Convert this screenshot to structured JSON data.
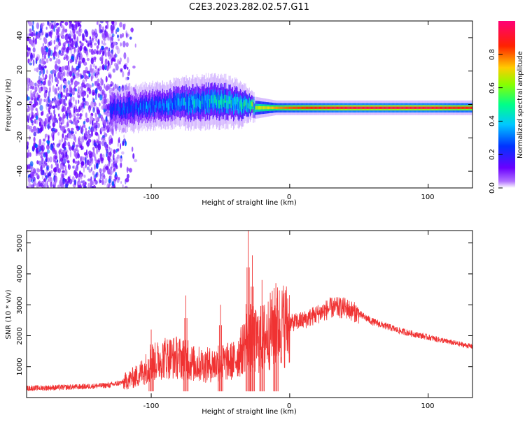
{
  "title": "C2E3.2023.282.02.57.G11",
  "top_panel": {
    "xlabel": "Height of straight line (km)",
    "ylabel": "Frequency (Hz)",
    "x_ticks": [
      "-100",
      "0",
      "100"
    ],
    "y_ticks": [
      "-40",
      "-20",
      "0",
      "20",
      "40"
    ],
    "colorbar": {
      "label": "Normalized spectral amplitude",
      "ticks": [
        "0.0",
        "0.2",
        "0.4",
        "0.6",
        "0.8"
      ]
    }
  },
  "bottom_panel": {
    "xlabel": "Height of straight line (km)",
    "ylabel": "SNR (10 * v/v)",
    "x_ticks": [
      "-100",
      "0",
      "100"
    ],
    "y_ticks": [
      "1000",
      "2000",
      "3000",
      "4000",
      "5000"
    ]
  },
  "chart_data": [
    {
      "type": "heatmap",
      "title": "C2E3.2023.282.02.57.G11",
      "xlabel": "Height of straight line (km)",
      "ylabel": "Frequency (Hz)",
      "xlim": [
        -190,
        132
      ],
      "ylim": [
        -50,
        50
      ],
      "x_ticks": [
        -100,
        0,
        100
      ],
      "y_ticks": [
        -40,
        -20,
        0,
        20,
        40
      ],
      "colorbar": {
        "label": "Normalized spectral amplitude",
        "range": [
          0,
          1
        ],
        "ticks": [
          0.0,
          0.2,
          0.4,
          0.6,
          0.8
        ],
        "colormap": [
          "#ffffff",
          "#6a00ff",
          "#0033ff",
          "#00c8ff",
          "#00ff66",
          "#aaff00",
          "#ffcc00",
          "#ff2200",
          "#ff0077"
        ]
      },
      "signal_track": {
        "x": [
          -130,
          -110,
          -90,
          -70,
          -50,
          -35,
          -25,
          -10,
          0,
          20,
          40,
          60,
          80,
          100,
          120,
          132
        ],
        "center_freq": [
          -3,
          -2,
          0,
          1,
          2,
          0,
          -2,
          -2,
          -2,
          -2,
          -2,
          -2,
          -2,
          -2,
          -2,
          -2
        ],
        "halfwidth": [
          6,
          6,
          6,
          7,
          7,
          6,
          3,
          2,
          2,
          2,
          2,
          2,
          2,
          2,
          2,
          2
        ],
        "amplitude": [
          0.25,
          0.3,
          0.35,
          0.4,
          0.45,
          0.45,
          0.6,
          0.75,
          0.8,
          0.85,
          0.9,
          0.9,
          0.9,
          0.9,
          0.85,
          0.85
        ]
      },
      "noise_region": {
        "x_range": [
          -190,
          -110
        ],
        "amplitude_range": [
          0.05,
          0.15
        ]
      }
    },
    {
      "type": "line",
      "xlabel": "Height of straight line (km)",
      "ylabel": "SNR (10 * v/v)",
      "xlim": [
        -190,
        132
      ],
      "ylim": [
        0,
        5400
      ],
      "x_ticks": [
        -100,
        0,
        100
      ],
      "y_ticks": [
        1000,
        2000,
        3000,
        4000,
        5000
      ],
      "color": "#f03232",
      "series": [
        {
          "x": [
            -190,
            -170,
            -150,
            -130,
            -120,
            -110,
            -100,
            -90,
            -80,
            -70,
            -60,
            -50,
            -40,
            -35,
            -30,
            -25,
            -20,
            -10,
            0,
            10,
            20,
            30,
            40,
            50,
            60,
            70,
            80,
            90,
            100,
            110,
            120,
            132
          ],
          "values": [
            300,
            320,
            350,
            400,
            500,
            700,
            1100,
            1300,
            1300,
            1100,
            1050,
            1100,
            1200,
            1500,
            2000,
            1800,
            1900,
            2300,
            2400,
            2500,
            2700,
            2900,
            2900,
            2700,
            2450,
            2300,
            2150,
            2050,
            1950,
            1850,
            1750,
            1650
          ],
          "spikes": [
            {
              "x": -100,
              "y": 2200
            },
            {
              "x": -75,
              "y": 3300
            },
            {
              "x": -50,
              "y": 3000
            },
            {
              "x": -30,
              "y": 5400
            },
            {
              "x": -27,
              "y": 4600
            },
            {
              "x": -20,
              "y": 3800
            },
            {
              "x": -10,
              "y": 3700
            }
          ]
        }
      ]
    }
  ]
}
